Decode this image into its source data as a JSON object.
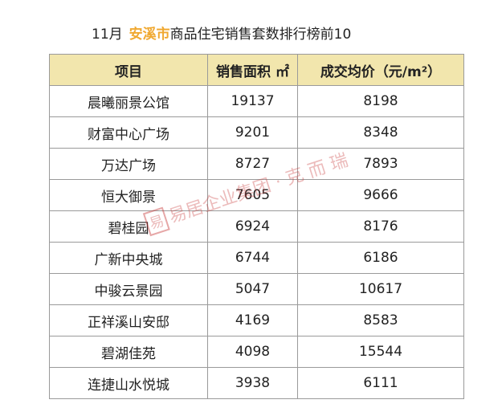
{
  "title": {
    "month": "11月",
    "city": "安溪市",
    "rest": "商品住宅销售套数排行榜前10"
  },
  "colors": {
    "accent": "#f0a830",
    "header_bg": "#f2e6ad"
  },
  "table": {
    "headers": [
      "项目",
      "销售面积 ㎡",
      "成交均价（元/m²）"
    ],
    "rows": [
      [
        "晨曦丽景公馆",
        "19137",
        "8198"
      ],
      [
        "财富中心广场",
        "9201",
        "8348"
      ],
      [
        "万达广场",
        "8727",
        "7893"
      ],
      [
        "恒大御景",
        "7605",
        "9666"
      ],
      [
        "碧桂园",
        "6924",
        "8176"
      ],
      [
        "广新中央城",
        "6744",
        "6186"
      ],
      [
        "中骏云景园",
        "5047",
        "10617"
      ],
      [
        "正祥溪山安邸",
        "4169",
        "8583"
      ],
      [
        "碧湖佳苑",
        "4098",
        "15544"
      ],
      [
        "连捷山水悦城",
        "3938",
        "6111"
      ]
    ]
  },
  "watermark": {
    "seal": "易居",
    "text": "易居企业集团·克而瑞"
  }
}
